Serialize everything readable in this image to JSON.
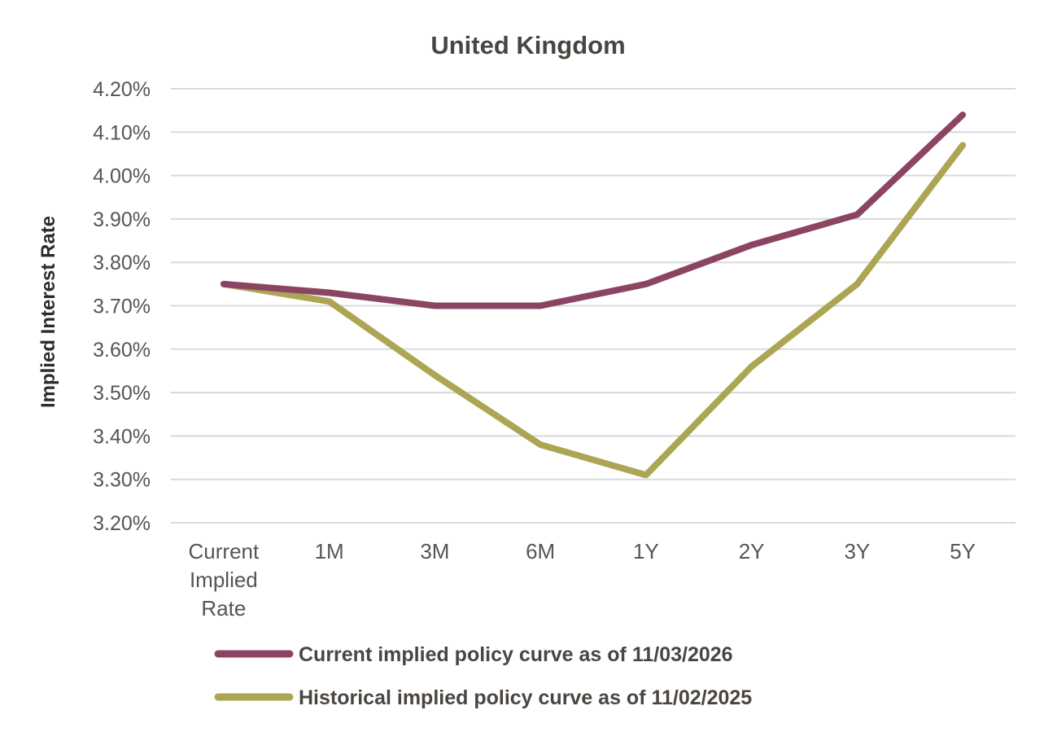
{
  "chart_data": {
    "type": "line",
    "title": "United Kingdom",
    "xlabel": "",
    "ylabel": "Implied Interest Rate",
    "categories": [
      "Current Implied Rate",
      "1M",
      "3M",
      "6M",
      "1Y",
      "2Y",
      "3Y",
      "5Y"
    ],
    "category_lines": [
      [
        "Current",
        "Implied",
        "Rate"
      ],
      [
        "1M"
      ],
      [
        "3M"
      ],
      [
        "6M"
      ],
      [
        "1Y"
      ],
      [
        "2Y"
      ],
      [
        "3Y"
      ],
      [
        "5Y"
      ]
    ],
    "ylim": [
      3.2,
      4.2
    ],
    "yticks": [
      3.2,
      3.3,
      3.4,
      3.5,
      3.6,
      3.7,
      3.8,
      3.9,
      4.0,
      4.1,
      4.2
    ],
    "ytick_labels": [
      "3.20%",
      "3.30%",
      "3.40%",
      "3.50%",
      "3.60%",
      "3.70%",
      "3.80%",
      "3.90%",
      "4.00%",
      "4.10%",
      "4.20%"
    ],
    "grid": true,
    "legend_position": "bottom",
    "series": [
      {
        "name": "Current implied policy curve as of 11/03/2026",
        "color": "#8b4563",
        "values": [
          3.75,
          3.73,
          3.7,
          3.7,
          3.75,
          3.84,
          3.91,
          4.14
        ]
      },
      {
        "name": "Historical implied policy curve as of 11/02/2025",
        "color": "#aca654",
        "values": [
          3.75,
          3.71,
          3.54,
          3.38,
          3.31,
          3.56,
          3.75,
          4.07
        ]
      }
    ]
  }
}
